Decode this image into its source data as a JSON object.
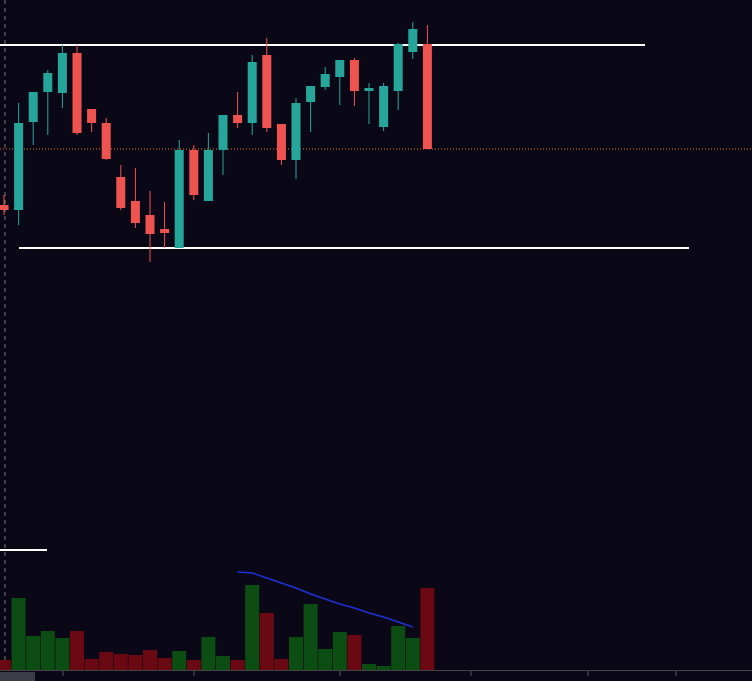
{
  "chart_data": [
    {
      "type": "candlestick",
      "up_color": "#26a69a",
      "down_color": "#ef5350",
      "ylim": [
        0,
        270
      ],
      "open": [
        65,
        60,
        148,
        178,
        177,
        217,
        161,
        147,
        93,
        69,
        55,
        41,
        22,
        120,
        69,
        120,
        155,
        147,
        215,
        146,
        110,
        168,
        183,
        193,
        210,
        179,
        143,
        179,
        218,
        226
      ],
      "close": [
        60,
        147,
        178,
        197,
        217,
        137,
        147,
        111,
        62,
        47,
        36,
        37,
        120,
        75,
        120,
        155,
        147,
        208,
        142,
        110,
        167,
        184,
        196,
        210,
        179,
        182,
        184,
        226,
        241,
        121
      ],
      "high": [
        75,
        167,
        178,
        200,
        225,
        225,
        161,
        152,
        105,
        102,
        79,
        68,
        130,
        125,
        137,
        155,
        178,
        215,
        232,
        146,
        172,
        184,
        203,
        210,
        212,
        187,
        187,
        227,
        248,
        245
      ],
      "low": [
        55,
        45,
        125,
        135,
        162,
        135,
        138,
        110,
        60,
        42,
        8,
        22,
        22,
        70,
        69,
        95,
        142,
        135,
        138,
        105,
        91,
        138,
        180,
        165,
        164,
        146,
        139,
        160,
        211,
        121
      ],
      "levels": [
        {
          "value": 225,
          "color": "#ffffff",
          "style": "solid"
        },
        {
          "value": 22,
          "color": "#ffffff",
          "style": "solid"
        },
        {
          "value": 121,
          "color": "#e07a2a",
          "style": "dotted"
        }
      ]
    },
    {
      "type": "bar",
      "ylim": [
        0,
        130
      ],
      "up_color": "#0b4d12",
      "down_color": "#6b0912",
      "values": [
        10,
        72,
        34,
        39,
        32,
        39,
        11,
        18,
        16,
        15,
        20,
        12,
        19,
        10,
        33,
        14,
        10,
        85,
        57,
        11,
        33,
        66,
        21,
        38,
        35,
        6,
        4,
        44,
        32,
        82
      ],
      "series": [
        {
          "color": "#1f2fd6",
          "values": [
            null,
            null,
            null,
            null,
            null,
            null,
            null,
            null,
            null,
            null,
            null,
            null,
            null,
            null,
            null,
            null,
            98,
            97,
            92,
            87,
            82,
            76,
            71,
            66,
            62,
            57,
            53,
            48,
            43,
            null
          ]
        }
      ],
      "levels": [
        {
          "value": 120,
          "color": "#ffffff",
          "style": "solid"
        }
      ]
    }
  ]
}
